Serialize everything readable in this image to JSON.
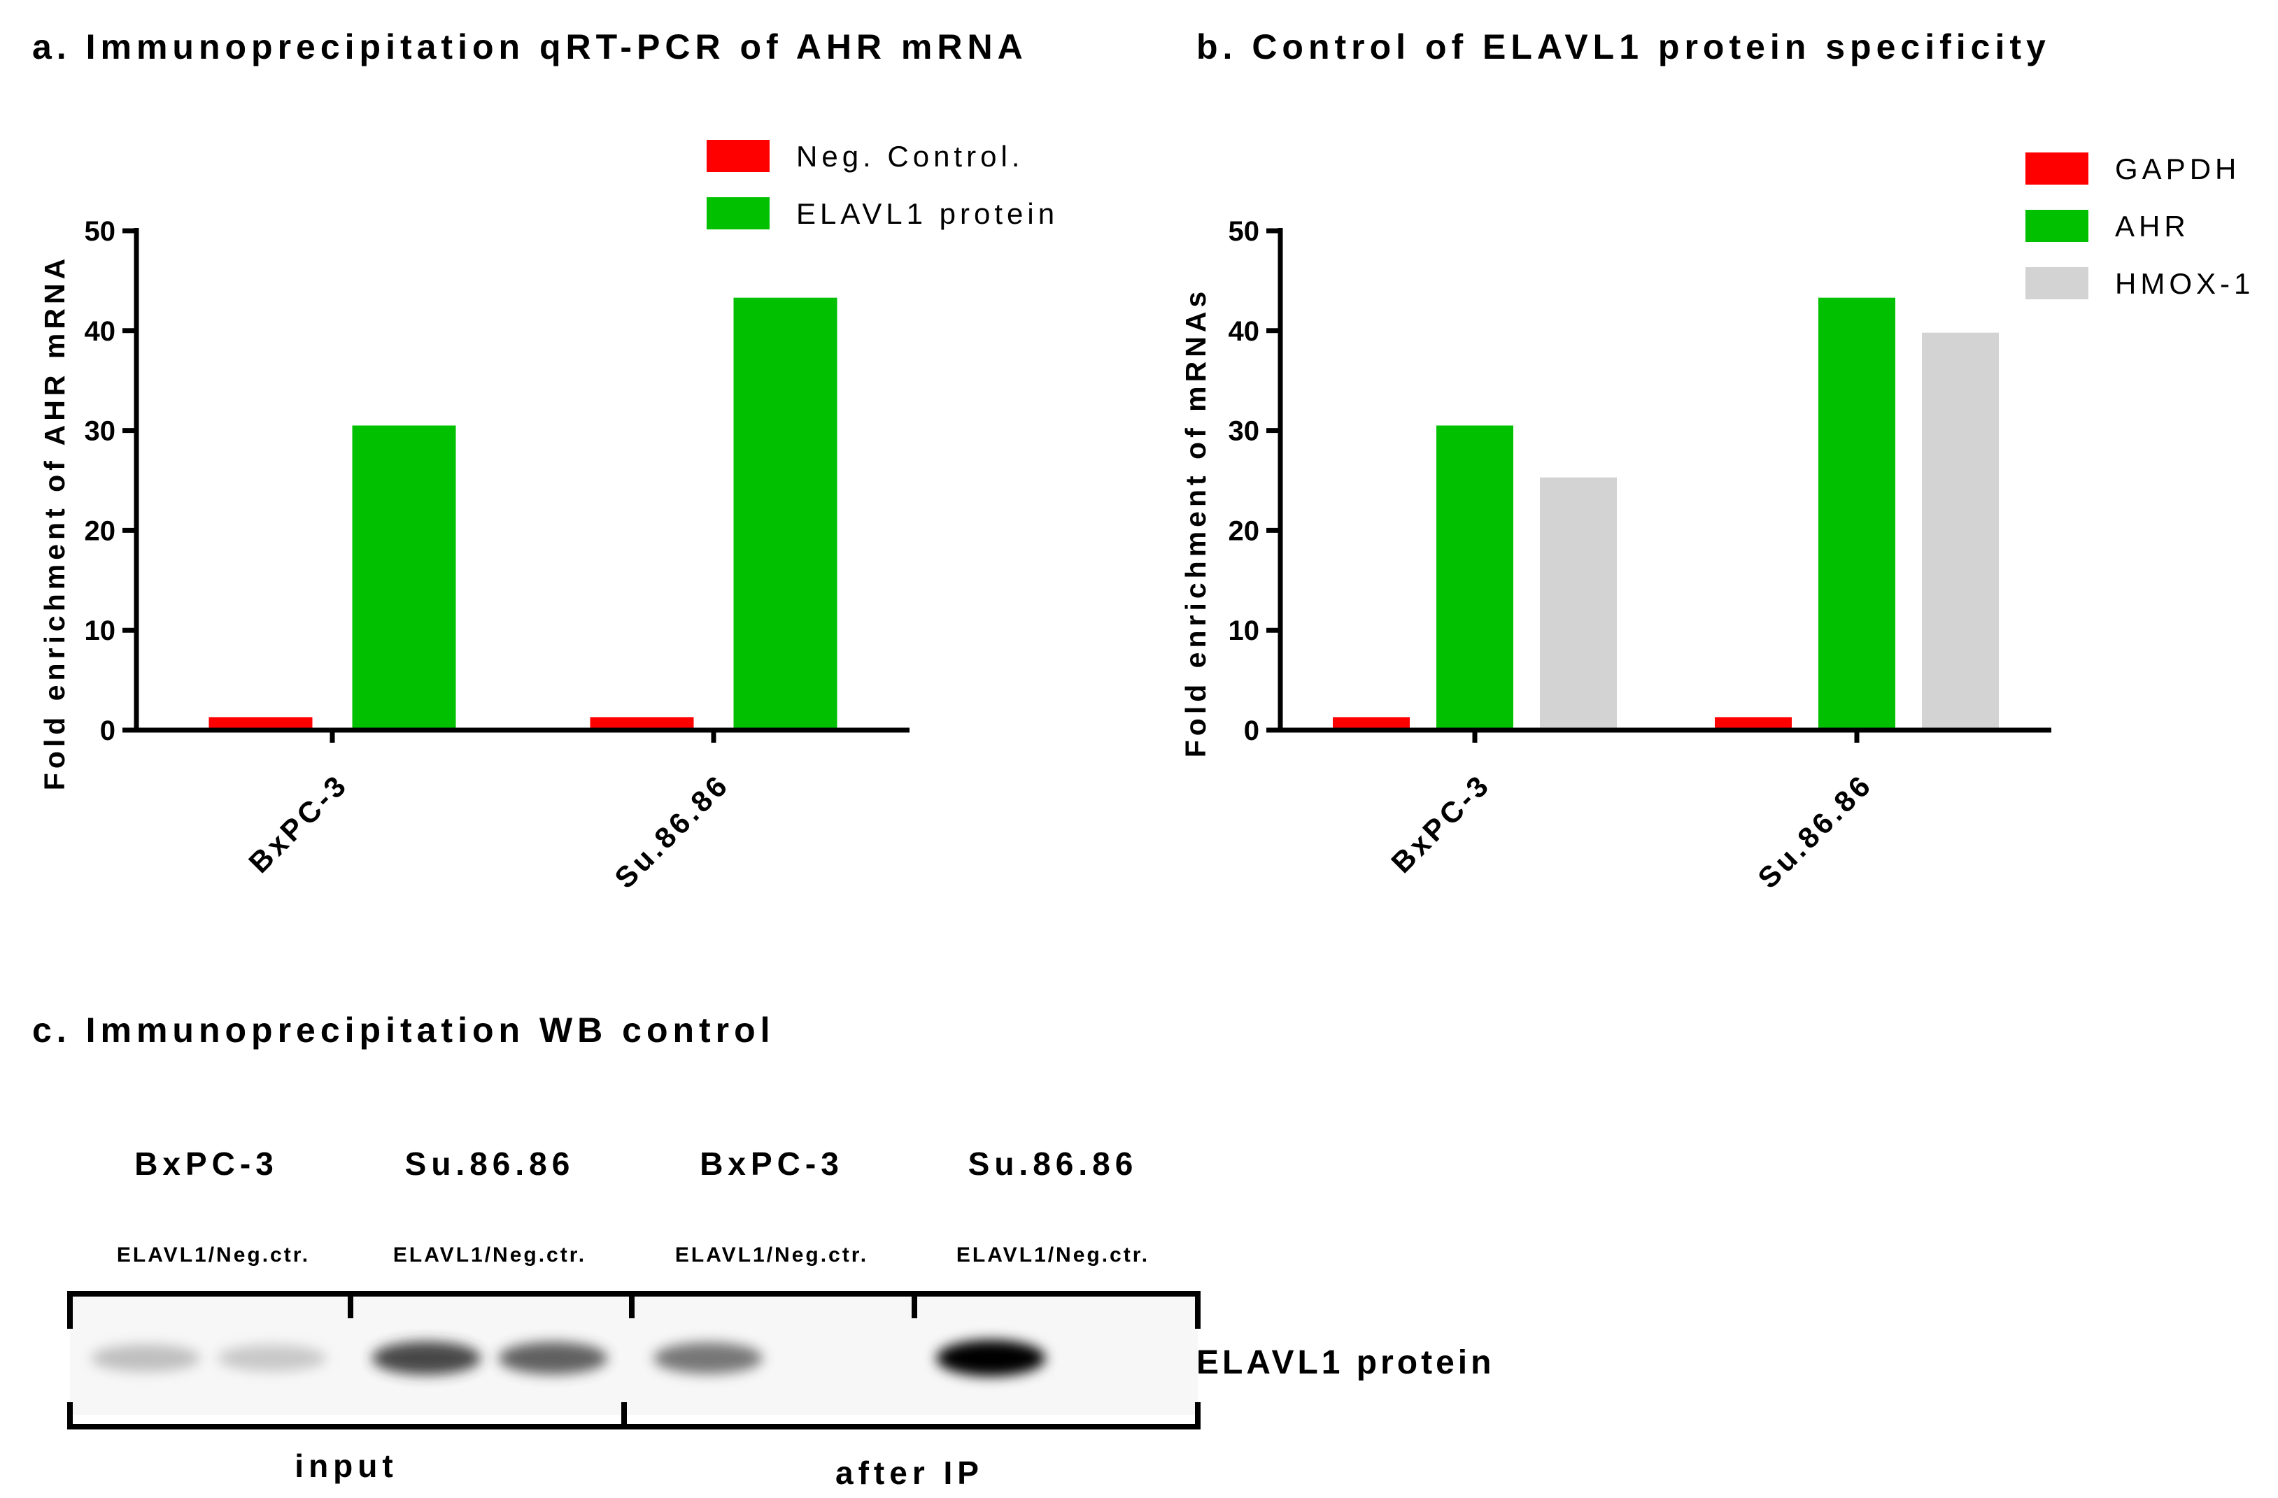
{
  "panel_a": {
    "title": "a. Immunoprecipitation qRT-PCR of AHR mRNA"
  },
  "panel_b": {
    "title": "b. Control of ELAVL1 protein specificity"
  },
  "panel_c": {
    "title": "c. Immunoprecipitation  WB control",
    "lanes": [
      {
        "cell_line": "BxPC-3",
        "sub": "ELAVL1/Neg.ctr.",
        "band_intensity": [
          0.35,
          0.3
        ]
      },
      {
        "cell_line": "Su.86.86",
        "sub": "ELAVL1/Neg.ctr.",
        "band_intensity": [
          0.8,
          0.72
        ]
      },
      {
        "cell_line": "BxPC-3",
        "sub": "ELAVL1/Neg.ctr.",
        "band_intensity": [
          0.65,
          0.0
        ]
      },
      {
        "cell_line": "Su.86.86",
        "sub": "ELAVL1/Neg.ctr.",
        "band_intensity": [
          1.0,
          0.0
        ]
      }
    ],
    "band_label": "ELAVL1 protein",
    "group_labels": [
      "input",
      "after  IP"
    ]
  },
  "colors": {
    "red": "#ff0000",
    "green": "#00c000",
    "grey": "#d3d3d3"
  },
  "chart_data": [
    {
      "type": "bar",
      "title": "a. Immunoprecipitation qRT-PCR of AHR mRNA",
      "categories": [
        "BxPC-3",
        "Su.86.86"
      ],
      "series": [
        {
          "name": "Neg. Control.",
          "values": [
            1.3,
            1.3
          ],
          "color": "#ff0000"
        },
        {
          "name": "ELAVL1 protein",
          "values": [
            30.5,
            43.3
          ],
          "color": "#00c000"
        }
      ],
      "ylabel": "Fold enrichment of AHR mRNA",
      "xlabel": "",
      "ylim": [
        0,
        50
      ],
      "yticks": [
        "0",
        "10",
        "20",
        "30",
        "40",
        "50"
      ],
      "grid": false,
      "legend": "top-right"
    },
    {
      "type": "bar",
      "title": "b. Control of ELAVL1 protein specificity",
      "categories": [
        "BxPC-3",
        "Su.86.86"
      ],
      "series": [
        {
          "name": "GAPDH",
          "values": [
            1.3,
            1.3
          ],
          "color": "#ff0000"
        },
        {
          "name": "AHR",
          "values": [
            30.5,
            43.3
          ],
          "color": "#00c000"
        },
        {
          "name": "HMOX-1",
          "values": [
            25.3,
            39.8
          ],
          "color": "#d3d3d3"
        }
      ],
      "ylabel": "Fold enrichment of mRNAs",
      "xlabel": "",
      "ylim": [
        0,
        50
      ],
      "yticks": [
        "0",
        "10",
        "20",
        "30",
        "40",
        "50"
      ],
      "grid": false,
      "legend": "top-right"
    }
  ]
}
